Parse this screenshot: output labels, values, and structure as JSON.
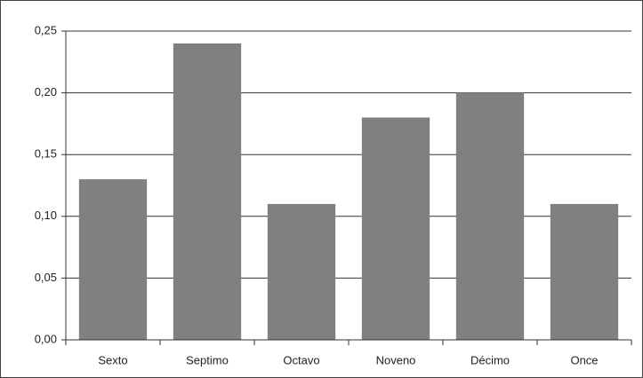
{
  "chart_data": {
    "type": "bar",
    "categories": [
      "Sexto",
      "Septimo",
      "Octavo",
      "Noveno",
      "Décimo",
      "Once"
    ],
    "values": [
      0.13,
      0.24,
      0.11,
      0.18,
      0.2,
      0.11
    ],
    "color": "#808080",
    "ylim": [
      0,
      0.25
    ],
    "yticks": [
      {
        "value": 0,
        "label": "0,00"
      },
      {
        "value": 0.05,
        "label": "0,05"
      },
      {
        "value": 0.1,
        "label": "0,10"
      },
      {
        "value": 0.15,
        "label": "0,15"
      },
      {
        "value": 0.2,
        "label": "0,20"
      },
      {
        "value": 0.25,
        "label": "0,25"
      }
    ],
    "grid": true
  }
}
